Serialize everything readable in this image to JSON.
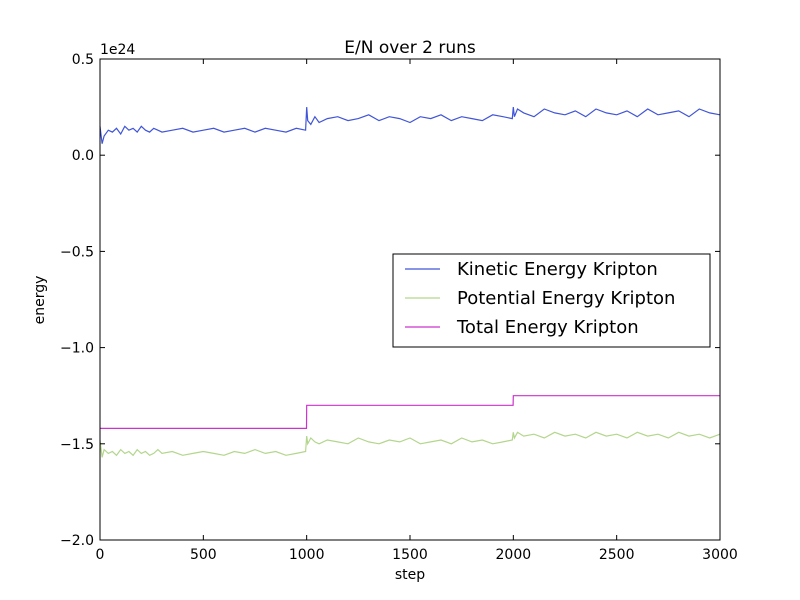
{
  "chart_data": {
    "type": "line",
    "title": "E/N over 2 runs",
    "xlabel": "step",
    "ylabel": "energy",
    "y_offset_label": "1e24",
    "xlim": [
      0,
      3000
    ],
    "ylim": [
      -2.0,
      0.5
    ],
    "x_ticks": [
      0,
      500,
      1000,
      1500,
      2000,
      2500,
      3000
    ],
    "x_tick_labels": [
      "0",
      "500",
      "1000",
      "1500",
      "2000",
      "2500",
      "3000"
    ],
    "y_ticks": [
      0.5,
      0.0,
      -0.5,
      -1.0,
      -1.5,
      -2.0
    ],
    "y_tick_labels": [
      "0.5",
      "0.0",
      "−0.5",
      "−1.0",
      "−1.5",
      "−2.0"
    ],
    "grid": false,
    "legend_position": "center-right",
    "series": [
      {
        "name": "Kinetic Energy Kripton",
        "color": "#4055d8",
        "x": [
          0,
          10,
          20,
          40,
          60,
          80,
          100,
          120,
          140,
          160,
          180,
          200,
          220,
          240,
          260,
          280,
          300,
          350,
          400,
          450,
          500,
          550,
          600,
          650,
          700,
          750,
          800,
          850,
          900,
          950,
          995,
          1000,
          1005,
          1020,
          1040,
          1060,
          1100,
          1150,
          1200,
          1250,
          1300,
          1350,
          1400,
          1450,
          1500,
          1550,
          1600,
          1650,
          1700,
          1750,
          1800,
          1850,
          1900,
          1950,
          1995,
          2000,
          2005,
          2020,
          2050,
          2100,
          2150,
          2200,
          2250,
          2300,
          2350,
          2400,
          2450,
          2500,
          2550,
          2600,
          2650,
          2700,
          2750,
          2800,
          2850,
          2900,
          2950,
          3000
        ],
        "values": [
          0.15,
          0.06,
          0.1,
          0.13,
          0.12,
          0.14,
          0.11,
          0.15,
          0.13,
          0.14,
          0.12,
          0.15,
          0.13,
          0.12,
          0.14,
          0.13,
          0.12,
          0.13,
          0.14,
          0.12,
          0.13,
          0.14,
          0.12,
          0.13,
          0.14,
          0.12,
          0.14,
          0.13,
          0.12,
          0.14,
          0.13,
          0.25,
          0.18,
          0.16,
          0.2,
          0.17,
          0.19,
          0.2,
          0.18,
          0.19,
          0.21,
          0.18,
          0.2,
          0.19,
          0.17,
          0.2,
          0.19,
          0.21,
          0.18,
          0.2,
          0.19,
          0.18,
          0.21,
          0.2,
          0.19,
          0.25,
          0.2,
          0.24,
          0.22,
          0.2,
          0.24,
          0.22,
          0.21,
          0.23,
          0.2,
          0.24,
          0.22,
          0.21,
          0.23,
          0.2,
          0.24,
          0.21,
          0.22,
          0.23,
          0.2,
          0.24,
          0.22,
          0.21
        ]
      },
      {
        "name": "Potential Energy Kripton",
        "color": "#b3d68c",
        "x": [
          0,
          10,
          20,
          40,
          60,
          80,
          100,
          120,
          140,
          160,
          180,
          200,
          220,
          240,
          260,
          280,
          300,
          350,
          400,
          450,
          500,
          550,
          600,
          650,
          700,
          750,
          800,
          850,
          900,
          950,
          995,
          1000,
          1005,
          1020,
          1040,
          1060,
          1100,
          1150,
          1200,
          1250,
          1300,
          1350,
          1400,
          1450,
          1500,
          1550,
          1600,
          1650,
          1700,
          1750,
          1800,
          1850,
          1900,
          1950,
          1995,
          2000,
          2005,
          2020,
          2050,
          2100,
          2150,
          2200,
          2250,
          2300,
          2350,
          2400,
          2450,
          2500,
          2550,
          2600,
          2650,
          2700,
          2750,
          2800,
          2850,
          2900,
          2950,
          3000
        ],
        "values": [
          -1.48,
          -1.57,
          -1.53,
          -1.55,
          -1.54,
          -1.56,
          -1.53,
          -1.55,
          -1.54,
          -1.56,
          -1.53,
          -1.55,
          -1.54,
          -1.56,
          -1.55,
          -1.53,
          -1.55,
          -1.54,
          -1.56,
          -1.55,
          -1.54,
          -1.55,
          -1.56,
          -1.54,
          -1.55,
          -1.53,
          -1.55,
          -1.54,
          -1.56,
          -1.55,
          -1.54,
          -1.46,
          -1.5,
          -1.47,
          -1.49,
          -1.5,
          -1.48,
          -1.49,
          -1.5,
          -1.47,
          -1.49,
          -1.5,
          -1.48,
          -1.49,
          -1.47,
          -1.5,
          -1.49,
          -1.48,
          -1.5,
          -1.47,
          -1.49,
          -1.48,
          -1.5,
          -1.49,
          -1.48,
          -1.44,
          -1.47,
          -1.44,
          -1.46,
          -1.45,
          -1.47,
          -1.44,
          -1.46,
          -1.45,
          -1.47,
          -1.44,
          -1.46,
          -1.45,
          -1.47,
          -1.44,
          -1.46,
          -1.45,
          -1.47,
          -1.44,
          -1.46,
          -1.45,
          -1.47,
          -1.45
        ]
      },
      {
        "name": "Total Energy Kripton",
        "color": "#cc33cc",
        "x": [
          0,
          999,
          1000,
          1999,
          2000,
          3000
        ],
        "values": [
          -1.42,
          -1.42,
          -1.3,
          -1.3,
          -1.25,
          -1.25
        ]
      }
    ]
  }
}
